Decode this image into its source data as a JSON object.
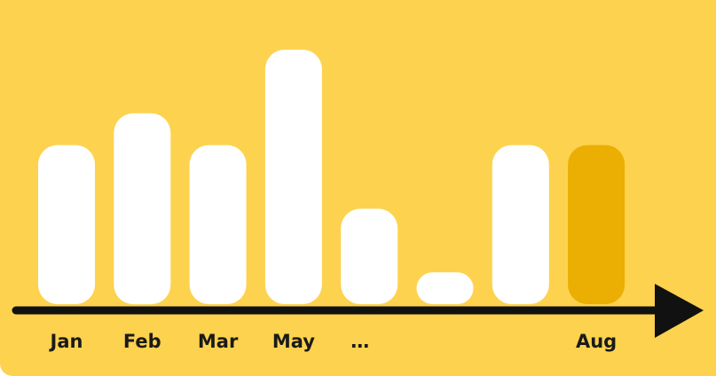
{
  "chart_data": {
    "type": "bar",
    "title": "",
    "xlabel": "",
    "ylabel": "",
    "categories": [
      "Jan",
      "Feb",
      "Mar",
      "May",
      "…",
      "",
      "",
      "Aug"
    ],
    "values": [
      5,
      6,
      5,
      8,
      3,
      1,
      5,
      5
    ],
    "ylim": [
      0,
      9
    ],
    "grid": false,
    "highlight_index": 7,
    "colors": {
      "background": "#FDD24E",
      "bar": "#FFFFFF",
      "highlight": "#EBAE02",
      "axis": "#111111"
    }
  }
}
